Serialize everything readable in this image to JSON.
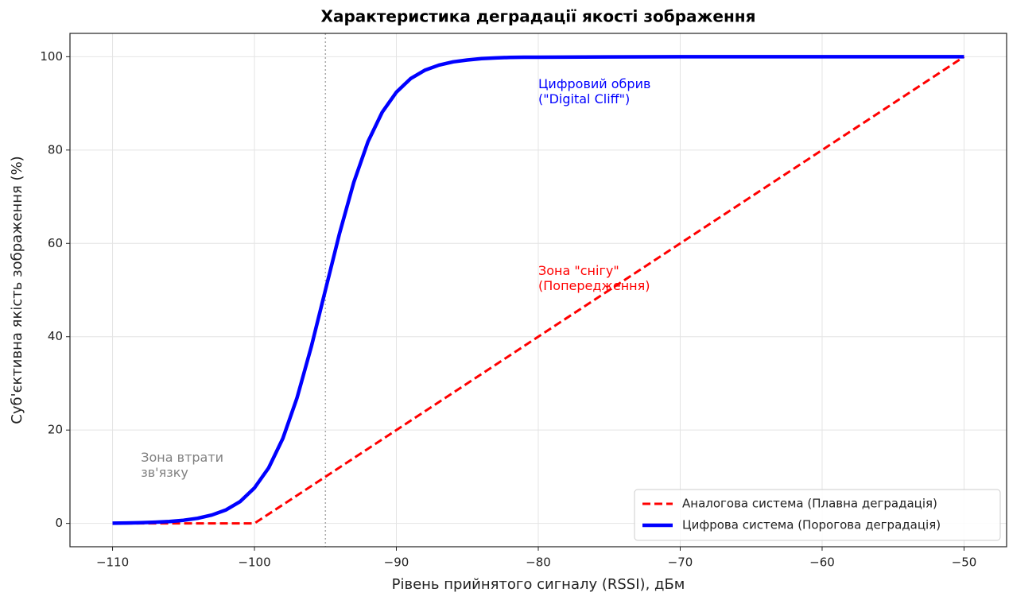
{
  "chart_data": {
    "type": "line",
    "title": "Характеристика деградації якості зображення",
    "xlabel": "Рівень прийнятого сигналу (RSSI), дБм",
    "ylabel": "Суб'єктивна якість зображення (%)",
    "xlim": [
      -113,
      -47
    ],
    "ylim": [
      -5,
      105
    ],
    "xticks": [
      {
        "value": -110,
        "label": "−110"
      },
      {
        "value": -100,
        "label": "−100"
      },
      {
        "value": -90,
        "label": "−90"
      },
      {
        "value": -80,
        "label": "−80"
      },
      {
        "value": -70,
        "label": "−70"
      },
      {
        "value": -60,
        "label": "−60"
      },
      {
        "value": -50,
        "label": "−50"
      }
    ],
    "yticks": [
      0,
      20,
      40,
      60,
      80,
      100
    ],
    "grid": true,
    "legend": "lower right",
    "series": [
      {
        "name": "Аналогова система (Плавна деградація)",
        "color": "#ff0000",
        "style": "dashed",
        "x": [
          -110,
          -100,
          -50
        ],
        "values": [
          0,
          0,
          100
        ]
      },
      {
        "name": "Цифрова система (Порогова деградація)",
        "color": "#0000ff",
        "style": "solid",
        "x": [
          -110,
          -109,
          -108,
          -107,
          -106,
          -105,
          -104,
          -103,
          -102,
          -101,
          -100,
          -99,
          -98,
          -97,
          -96,
          -95,
          -94,
          -93,
          -92,
          -91,
          -90,
          -89,
          -88,
          -87,
          -86,
          -85,
          -84,
          -83,
          -82,
          -81,
          -80,
          -70,
          -60,
          -50
        ],
        "values": [
          0.055,
          0.091,
          0.15,
          0.25,
          0.41,
          0.67,
          1.1,
          1.8,
          2.9,
          4.7,
          7.6,
          11.9,
          18.2,
          26.9,
          37.8,
          50,
          62.2,
          73.1,
          81.8,
          88.1,
          92.4,
          95.3,
          97.1,
          98.2,
          98.9,
          99.3,
          99.6,
          99.75,
          99.85,
          99.9,
          99.9,
          100,
          100,
          100
        ]
      }
    ],
    "vline": {
      "x": -95,
      "color": "#aaaaaa"
    },
    "annotations": [
      {
        "lines": [
          "Цифровий обрив",
          "(\"Digital Cliff\")"
        ],
        "x": -80,
        "y": 90,
        "color": "#0000ff"
      },
      {
        "lines": [
          "Зона \"снігу\"",
          "(Попередження)"
        ],
        "x": -80,
        "y": 50,
        "color": "#ff0000"
      },
      {
        "lines": [
          "Зона втрати",
          "зв'язку"
        ],
        "x": -108,
        "y": 10,
        "color": "#808080"
      }
    ]
  }
}
